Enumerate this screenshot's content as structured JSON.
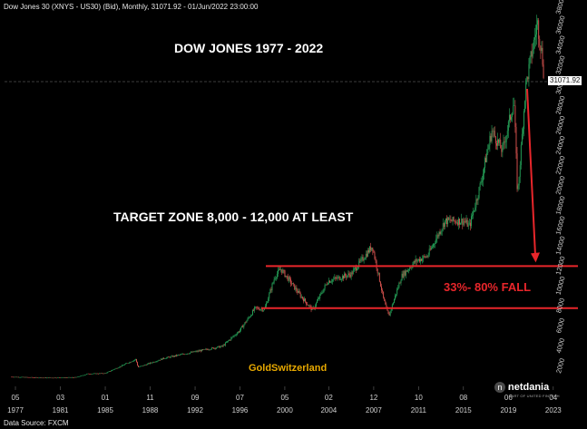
{
  "header": "Dow Jones 30 (XNYS - US30) (Bid), Monthly, 31071.92 - 01/Jun/2022 23:00:00",
  "source": "Data Source: FXCM",
  "logo": {
    "name": "netdania",
    "sub": "PART OF UNITED FINTECH"
  },
  "colors": {
    "up": "#26a65b",
    "down": "#d9534f",
    "accent": "#e8262b",
    "gold": "#e8a900"
  },
  "chart_data": {
    "type": "candlestick",
    "title": "DOW JONES 1977 - 2022",
    "annotations": [
      {
        "label": "TARGET  ZONE 8,000 - 12,000 AT LEAST"
      },
      {
        "label": "33%- 80% FALL"
      },
      {
        "label": "GoldSwitzerland"
      }
    ],
    "last_price": "31071.92",
    "y_ticks": [
      "2000",
      "4000",
      "6000",
      "8000",
      "10000",
      "12000",
      "14000",
      "16000",
      "18000",
      "20000",
      "22000",
      "24000",
      "26000",
      "28000",
      "30000",
      "32000",
      "34000",
      "36000",
      "38000"
    ],
    "ylim": [
      0,
      38000
    ],
    "x_ticks": [
      {
        "month": "05",
        "year": "1977",
        "t": 1977.33
      },
      {
        "month": "03",
        "year": "1981",
        "t": 1981.17
      },
      {
        "month": "01",
        "year": "1985",
        "t": 1985.0
      },
      {
        "month": "11",
        "year": "1988",
        "t": 1988.83
      },
      {
        "month": "09",
        "year": "1992",
        "t": 1992.67
      },
      {
        "month": "07",
        "year": "1996",
        "t": 1996.5
      },
      {
        "month": "05",
        "year": "2000",
        "t": 2000.33
      },
      {
        "month": "02",
        "year": "2004",
        "t": 2004.08
      },
      {
        "month": "12",
        "year": "2007",
        "t": 2007.92
      },
      {
        "month": "10",
        "year": "2011",
        "t": 2011.75
      },
      {
        "month": "08",
        "year": "2015",
        "t": 2015.58
      },
      {
        "month": "06",
        "year": "2019",
        "t": 2019.42
      },
      {
        "month": "04",
        "year": "2023",
        "t": 2023.25
      }
    ],
    "xlim": [
      1976.4,
      2025.2
    ],
    "support_lines": [
      12000,
      7800
    ],
    "price_path": [
      [
        1977.0,
        950
      ],
      [
        1980.0,
        850
      ],
      [
        1982.5,
        900
      ],
      [
        1983.5,
        1250
      ],
      [
        1985.0,
        1300
      ],
      [
        1987.6,
        2700
      ],
      [
        1987.8,
        1900
      ],
      [
        1990.0,
        2800
      ],
      [
        1992.0,
        3300
      ],
      [
        1995.0,
        4000
      ],
      [
        1996.5,
        5600
      ],
      [
        1997.8,
        7800
      ],
      [
        1998.6,
        7700
      ],
      [
        1999.5,
        11000
      ],
      [
        2000.0,
        11700
      ],
      [
        2001.7,
        9000
      ],
      [
        2002.7,
        7600
      ],
      [
        2004.0,
        10500
      ],
      [
        2006.0,
        11200
      ],
      [
        2007.8,
        14000
      ],
      [
        2008.8,
        8500
      ],
      [
        2009.2,
        7000
      ],
      [
        2010.3,
        11000
      ],
      [
        2011.5,
        12500
      ],
      [
        2012.5,
        13000
      ],
      [
        2014.0,
        16500
      ],
      [
        2015.6,
        16500
      ],
      [
        2016.1,
        16000
      ],
      [
        2017.0,
        20000
      ],
      [
        2018.0,
        25500
      ],
      [
        2018.9,
        23500
      ],
      [
        2019.9,
        28500
      ],
      [
        2020.2,
        19000
      ],
      [
        2020.9,
        30000
      ],
      [
        2021.9,
        36300
      ],
      [
        2022.3,
        33000
      ],
      [
        2022.45,
        31071.92
      ]
    ],
    "grid": false
  }
}
